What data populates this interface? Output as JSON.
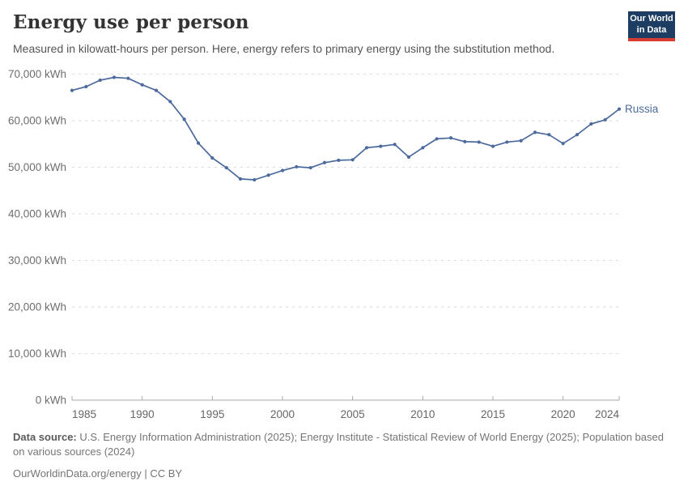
{
  "header": {
    "title": "Energy use per person",
    "subtitle": "Measured in kilowatt-hours per person. Here, energy refers to primary energy using the substitution method."
  },
  "logo": {
    "line1": "Our World",
    "line2": "in Data",
    "bg_color": "#1d3d63",
    "bar_color": "#d73c34"
  },
  "chart_data": {
    "type": "line",
    "title": "Energy use per person",
    "subtitle": "Measured in kilowatt-hours per person. Here, energy refers to primary energy using the substitution method.",
    "xlabel": "",
    "ylabel": "",
    "xlim": [
      1985,
      2024
    ],
    "ylim": [
      0,
      70000
    ],
    "xticks": [
      1985,
      1990,
      1995,
      2000,
      2005,
      2010,
      2015,
      2020,
      2024
    ],
    "yticks": [
      0,
      10000,
      20000,
      30000,
      40000,
      50000,
      60000,
      70000
    ],
    "ytick_suffix": " kWh",
    "grid": "dashed-horizontal",
    "legend": "end-of-line-label",
    "x": [
      1985,
      1986,
      1987,
      1988,
      1989,
      1990,
      1991,
      1992,
      1993,
      1994,
      1995,
      1996,
      1997,
      1998,
      1999,
      2000,
      2001,
      2002,
      2003,
      2004,
      2005,
      2006,
      2007,
      2008,
      2009,
      2010,
      2011,
      2012,
      2013,
      2014,
      2015,
      2016,
      2017,
      2018,
      2019,
      2020,
      2021,
      2022,
      2023,
      2024
    ],
    "series": [
      {
        "name": "Russia",
        "color": "#4c6a9c",
        "values": [
          66500,
          67300,
          68700,
          69300,
          69100,
          67700,
          66500,
          64100,
          60300,
          55200,
          52000,
          49900,
          47500,
          47300,
          48300,
          49300,
          50100,
          49900,
          51000,
          51500,
          51600,
          54200,
          54500,
          54900,
          52200,
          54200,
          56100,
          56300,
          55500,
          55400,
          54500,
          55400,
          55700,
          57500,
          57000,
          55100,
          57000,
          59300,
          60200,
          62500
        ]
      }
    ],
    "colors": {
      "line": "#4c6a9c",
      "gridline": "#dadada",
      "axis": "#a8a8a8",
      "tick_label": "#666666",
      "y_label": "#6e6e6e"
    }
  },
  "footer": {
    "source_label": "Data source:",
    "source_text": " U.S. Energy Information Administration (2025); Energy Institute - Statistical Review of World Energy (2025); Population based on various sources (2024)",
    "license_line": "OurWorldinData.org/energy | CC BY"
  }
}
